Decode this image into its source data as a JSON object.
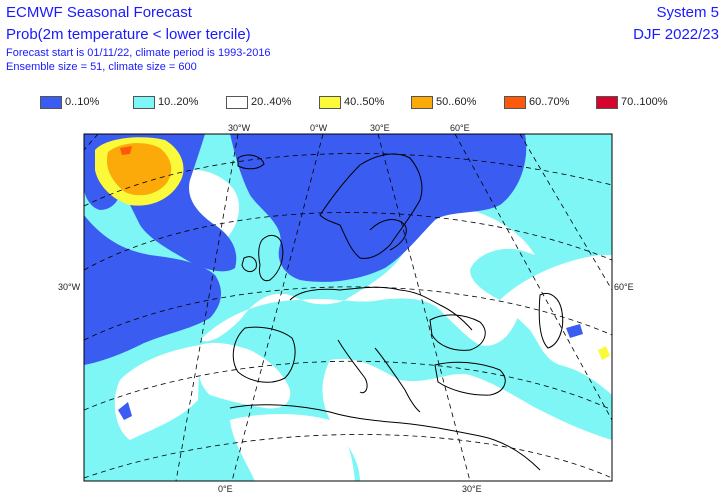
{
  "header": {
    "title": "ECMWF Seasonal Forecast",
    "subtitle": "Prob(2m temperature < lower tercile)",
    "forecast_info": "Forecast start is 01/11/22, climate period is 1993-2016",
    "ensemble_info": "Ensemble size = 51, climate size = 600",
    "system": "System 5",
    "season": "DJF 2022/23"
  },
  "legend": [
    {
      "label": "0..10%",
      "color": "#3a5cf0"
    },
    {
      "label": "10..20%",
      "color": "#7ff6f6"
    },
    {
      "label": "20..40%",
      "color": "#ffffff"
    },
    {
      "label": "40..50%",
      "color": "#fafa3a"
    },
    {
      "label": "50..60%",
      "color": "#fca90a"
    },
    {
      "label": "60..70%",
      "color": "#fc5a0a"
    },
    {
      "label": "70..100%",
      "color": "#d4042c"
    }
  ],
  "graticule_labels": {
    "top": [
      "30°W",
      "0°W",
      "30°E",
      "60°E"
    ],
    "left": "30°W",
    "right": "60°E",
    "bottom": [
      "0°E",
      "30°E"
    ]
  }
}
